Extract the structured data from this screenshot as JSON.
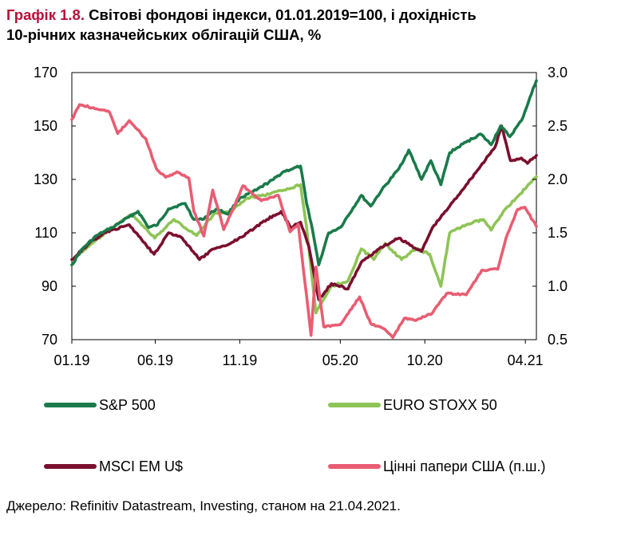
{
  "title": {
    "number": "Графік 1.8.",
    "line1": "Світові фондові індекси, 01.01.2019=100, і дохідність",
    "line2": "10-річних казначейських облігацій США, %"
  },
  "source": "Джерело: Refinitiv Datastream, Investing, станом на 21.04.2021.",
  "chart_data": {
    "type": "line",
    "x_tick_labels": [
      "01.19",
      "06.19",
      "11.19",
      "05.20",
      "10.20",
      "04.21"
    ],
    "x_tick_dates": [
      "2019-01-01",
      "2019-06-01",
      "2019-11-01",
      "2020-05-01",
      "2020-10-01",
      "2021-04-01"
    ],
    "x_range": [
      "2019-01-01",
      "2021-04-21"
    ],
    "y_left": {
      "range": [
        70,
        170
      ],
      "ticks": [
        "170",
        "150",
        "130",
        "110",
        "90",
        "70"
      ]
    },
    "y_right": {
      "range": [
        0.5,
        3.0
      ],
      "ticks": [
        "3.0",
        "2.5",
        "2.0",
        "1.5",
        "1.0",
        "0.5"
      ]
    },
    "grid": false,
    "legend_placement": "bottom",
    "series": [
      {
        "name": "S&P 500",
        "axis": "left",
        "color": "#1a7a4a",
        "points": [
          [
            "2019-01-01",
            98
          ],
          [
            "2019-01-20",
            104
          ],
          [
            "2019-02-15",
            109
          ],
          [
            "2019-03-15",
            112
          ],
          [
            "2019-04-15",
            116
          ],
          [
            "2019-05-01",
            118
          ],
          [
            "2019-05-20",
            112
          ],
          [
            "2019-06-05",
            113
          ],
          [
            "2019-06-25",
            119
          ],
          [
            "2019-07-25",
            121
          ],
          [
            "2019-08-10",
            115
          ],
          [
            "2019-08-25",
            115
          ],
          [
            "2019-09-20",
            119
          ],
          [
            "2019-10-10",
            117
          ],
          [
            "2019-11-01",
            123
          ],
          [
            "2019-12-01",
            126
          ],
          [
            "2020-01-01",
            130
          ],
          [
            "2020-01-20",
            133
          ],
          [
            "2020-02-05",
            134
          ],
          [
            "2020-02-19",
            135
          ],
          [
            "2020-03-01",
            121
          ],
          [
            "2020-03-10",
            113
          ],
          [
            "2020-03-23",
            98
          ],
          [
            "2020-04-10",
            110
          ],
          [
            "2020-05-01",
            112
          ],
          [
            "2020-06-08",
            124
          ],
          [
            "2020-06-25",
            120
          ],
          [
            "2020-07-15",
            126
          ],
          [
            "2020-08-15",
            134
          ],
          [
            "2020-09-02",
            141
          ],
          [
            "2020-09-25",
            130
          ],
          [
            "2020-10-12",
            137
          ],
          [
            "2020-10-30",
            128
          ],
          [
            "2020-11-15",
            140
          ],
          [
            "2020-12-15",
            144
          ],
          [
            "2021-01-10",
            147
          ],
          [
            "2021-01-29",
            143
          ],
          [
            "2021-02-15",
            150
          ],
          [
            "2021-03-04",
            146
          ],
          [
            "2021-03-25",
            152
          ],
          [
            "2021-04-21",
            167
          ]
        ]
      },
      {
        "name": "EURO STOXX 50",
        "axis": "left",
        "color": "#8ec456",
        "points": [
          [
            "2019-01-01",
            100
          ],
          [
            "2019-02-01",
            105
          ],
          [
            "2019-03-15",
            112
          ],
          [
            "2019-04-20",
            117
          ],
          [
            "2019-05-31",
            108
          ],
          [
            "2019-07-05",
            115
          ],
          [
            "2019-08-15",
            109
          ],
          [
            "2019-09-15",
            117
          ],
          [
            "2019-10-15",
            118
          ],
          [
            "2019-11-15",
            123
          ],
          [
            "2019-12-15",
            124
          ],
          [
            "2020-01-20",
            126
          ],
          [
            "2020-02-19",
            128
          ],
          [
            "2020-03-01",
            112
          ],
          [
            "2020-03-18",
            80
          ],
          [
            "2020-04-15",
            90
          ],
          [
            "2020-05-15",
            92
          ],
          [
            "2020-06-08",
            104
          ],
          [
            "2020-07-01",
            100
          ],
          [
            "2020-07-21",
            106
          ],
          [
            "2020-08-20",
            100
          ],
          [
            "2020-09-15",
            104
          ],
          [
            "2020-10-10",
            102
          ],
          [
            "2020-10-30",
            90
          ],
          [
            "2020-11-15",
            110
          ],
          [
            "2020-12-15",
            113
          ],
          [
            "2021-01-15",
            115
          ],
          [
            "2021-01-29",
            111
          ],
          [
            "2021-02-20",
            118
          ],
          [
            "2021-03-20",
            124
          ],
          [
            "2021-04-21",
            131
          ]
        ]
      },
      {
        "name": "MSCI EM U$",
        "axis": "left",
        "color": "#7a0f2e",
        "points": [
          [
            "2019-01-01",
            100
          ],
          [
            "2019-02-01",
            106
          ],
          [
            "2019-03-01",
            110
          ],
          [
            "2019-04-15",
            113
          ],
          [
            "2019-05-30",
            102
          ],
          [
            "2019-06-25",
            110
          ],
          [
            "2019-07-20",
            108
          ],
          [
            "2019-08-20",
            100
          ],
          [
            "2019-09-15",
            104
          ],
          [
            "2019-10-15",
            106
          ],
          [
            "2019-11-15",
            110
          ],
          [
            "2019-12-20",
            115
          ],
          [
            "2020-01-15",
            118
          ],
          [
            "2020-02-01",
            112
          ],
          [
            "2020-02-19",
            114
          ],
          [
            "2020-03-05",
            105
          ],
          [
            "2020-03-23",
            85
          ],
          [
            "2020-04-15",
            91
          ],
          [
            "2020-05-15",
            89
          ],
          [
            "2020-06-08",
            99
          ],
          [
            "2020-07-10",
            104
          ],
          [
            "2020-08-15",
            108
          ],
          [
            "2020-09-25",
            103
          ],
          [
            "2020-10-15",
            112
          ],
          [
            "2020-11-15",
            120
          ],
          [
            "2020-12-15",
            128
          ],
          [
            "2021-01-10",
            135
          ],
          [
            "2021-02-05",
            142
          ],
          [
            "2021-02-17",
            150
          ],
          [
            "2021-03-05",
            137
          ],
          [
            "2021-03-25",
            138
          ],
          [
            "2021-04-05",
            136
          ],
          [
            "2021-04-21",
            139
          ]
        ]
      },
      {
        "name": "Цінні папери США (п.ш.)",
        "axis": "right",
        "color": "#e85d72",
        "points": [
          [
            "2019-01-01",
            2.56
          ],
          [
            "2019-01-15",
            2.7
          ],
          [
            "2019-02-15",
            2.66
          ],
          [
            "2019-03-10",
            2.63
          ],
          [
            "2019-03-25",
            2.43
          ],
          [
            "2019-04-15",
            2.55
          ],
          [
            "2019-05-15",
            2.38
          ],
          [
            "2019-06-03",
            2.1
          ],
          [
            "2019-06-20",
            2.02
          ],
          [
            "2019-07-10",
            2.07
          ],
          [
            "2019-08-01",
            2.01
          ],
          [
            "2019-08-10",
            1.7
          ],
          [
            "2019-08-28",
            1.47
          ],
          [
            "2019-09-13",
            1.9
          ],
          [
            "2019-10-03",
            1.53
          ],
          [
            "2019-11-07",
            1.94
          ],
          [
            "2019-12-10",
            1.8
          ],
          [
            "2020-01-10",
            1.85
          ],
          [
            "2020-01-31",
            1.51
          ],
          [
            "2020-02-15",
            1.58
          ],
          [
            "2020-03-09",
            0.54
          ],
          [
            "2020-03-18",
            1.18
          ],
          [
            "2020-04-01",
            0.62
          ],
          [
            "2020-05-01",
            0.64
          ],
          [
            "2020-06-05",
            0.9
          ],
          [
            "2020-06-25",
            0.65
          ],
          [
            "2020-07-20",
            0.6
          ],
          [
            "2020-08-04",
            0.52
          ],
          [
            "2020-08-25",
            0.7
          ],
          [
            "2020-09-15",
            0.68
          ],
          [
            "2020-10-15",
            0.75
          ],
          [
            "2020-11-09",
            0.93
          ],
          [
            "2020-12-15",
            0.92
          ],
          [
            "2021-01-12",
            1.15
          ],
          [
            "2021-02-10",
            1.16
          ],
          [
            "2021-02-25",
            1.45
          ],
          [
            "2021-03-18",
            1.72
          ],
          [
            "2021-03-31",
            1.74
          ],
          [
            "2021-04-21",
            1.56
          ]
        ]
      }
    ]
  }
}
